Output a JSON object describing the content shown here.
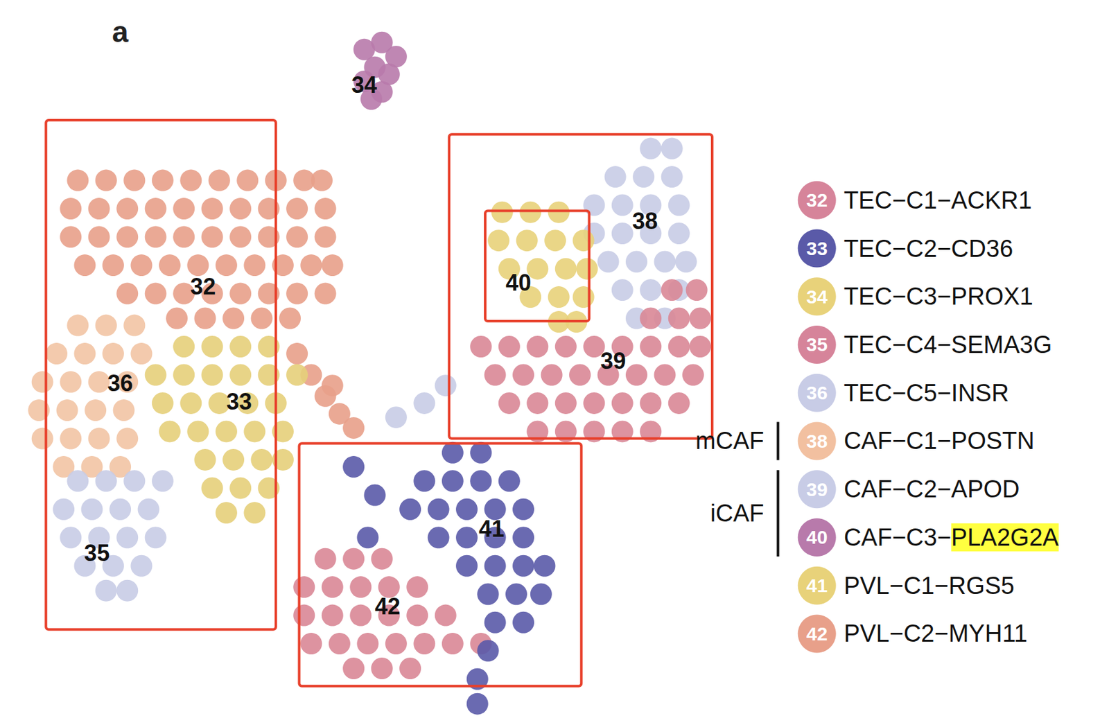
{
  "chart_data": {
    "type": "scatter",
    "panel_label": "a",
    "xlim": [
      0,
      1568
    ],
    "ylim": [
      1025,
      0
    ],
    "tick_labels": false,
    "grid": false,
    "series": [
      {
        "name": "34",
        "color": "#b87aab",
        "label_pos": [
          515,
          120
        ],
        "points": [
          [
            515,
            70
          ],
          [
            540,
            60
          ],
          [
            560,
            80
          ],
          [
            530,
            95
          ],
          [
            550,
            105
          ],
          [
            515,
            115
          ],
          [
            540,
            130
          ],
          [
            525,
            140
          ]
        ]
      },
      {
        "name": "32",
        "color": "#e8a08a",
        "label_pos": [
          287,
          405
        ],
        "points": [
          [
            110,
            255
          ],
          [
            150,
            255
          ],
          [
            190,
            255
          ],
          [
            230,
            255
          ],
          [
            270,
            255
          ],
          [
            310,
            255
          ],
          [
            350,
            255
          ],
          [
            390,
            255
          ],
          [
            430,
            255
          ],
          [
            455,
            255
          ],
          [
            100,
            295
          ],
          [
            140,
            295
          ],
          [
            180,
            295
          ],
          [
            220,
            295
          ],
          [
            260,
            295
          ],
          [
            300,
            295
          ],
          [
            340,
            295
          ],
          [
            380,
            295
          ],
          [
            420,
            295
          ],
          [
            460,
            295
          ],
          [
            100,
            335
          ],
          [
            140,
            335
          ],
          [
            180,
            335
          ],
          [
            220,
            335
          ],
          [
            260,
            335
          ],
          [
            300,
            335
          ],
          [
            340,
            335
          ],
          [
            380,
            335
          ],
          [
            420,
            335
          ],
          [
            460,
            335
          ],
          [
            120,
            375
          ],
          [
            160,
            375
          ],
          [
            200,
            375
          ],
          [
            240,
            375
          ],
          [
            280,
            375
          ],
          [
            320,
            375
          ],
          [
            360,
            375
          ],
          [
            400,
            375
          ],
          [
            440,
            375
          ],
          [
            470,
            375
          ],
          [
            180,
            415
          ],
          [
            220,
            415
          ],
          [
            260,
            415
          ],
          [
            300,
            415
          ],
          [
            340,
            415
          ],
          [
            380,
            415
          ],
          [
            420,
            415
          ],
          [
            460,
            415
          ],
          [
            250,
            450
          ],
          [
            290,
            450
          ],
          [
            330,
            450
          ],
          [
            370,
            450
          ],
          [
            410,
            450
          ],
          [
            420,
            500
          ],
          [
            440,
            530
          ],
          [
            470,
            545
          ],
          [
            460,
            560
          ],
          [
            480,
            585
          ],
          [
            500,
            605
          ]
        ]
      },
      {
        "name": "36",
        "color": "#f2c4a4",
        "label_pos": [
          170,
          542
        ],
        "points": [
          [
            110,
            460
          ],
          [
            150,
            460
          ],
          [
            190,
            460
          ],
          [
            80,
            500
          ],
          [
            120,
            500
          ],
          [
            160,
            500
          ],
          [
            200,
            500
          ],
          [
            60,
            540
          ],
          [
            100,
            540
          ],
          [
            140,
            540
          ],
          [
            180,
            540
          ],
          [
            55,
            580
          ],
          [
            95,
            580
          ],
          [
            135,
            580
          ],
          [
            175,
            580
          ],
          [
            60,
            620
          ],
          [
            100,
            620
          ],
          [
            140,
            620
          ],
          [
            180,
            620
          ],
          [
            90,
            660
          ],
          [
            130,
            660
          ],
          [
            170,
            660
          ]
        ]
      },
      {
        "name": "33",
        "color": "#e5cf7a",
        "label_pos": [
          338,
          568
        ],
        "points": [
          [
            260,
            490
          ],
          [
            300,
            490
          ],
          [
            340,
            490
          ],
          [
            380,
            490
          ],
          [
            220,
            530
          ],
          [
            260,
            530
          ],
          [
            300,
            530
          ],
          [
            340,
            530
          ],
          [
            380,
            530
          ],
          [
            420,
            530
          ],
          [
            230,
            570
          ],
          [
            270,
            570
          ],
          [
            310,
            570
          ],
          [
            350,
            570
          ],
          [
            390,
            570
          ],
          [
            240,
            610
          ],
          [
            280,
            610
          ],
          [
            320,
            610
          ],
          [
            360,
            610
          ],
          [
            400,
            610
          ],
          [
            290,
            650
          ],
          [
            330,
            650
          ],
          [
            370,
            650
          ],
          [
            400,
            650
          ],
          [
            300,
            690
          ],
          [
            340,
            690
          ],
          [
            380,
            690
          ],
          [
            320,
            725
          ],
          [
            360,
            725
          ]
        ]
      },
      {
        "name": "35",
        "color": "#c8cce6",
        "label_pos": [
          137,
          782
        ],
        "points": [
          [
            110,
            680
          ],
          [
            150,
            680
          ],
          [
            190,
            680
          ],
          [
            230,
            680
          ],
          [
            90,
            720
          ],
          [
            130,
            720
          ],
          [
            170,
            720
          ],
          [
            210,
            720
          ],
          [
            100,
            760
          ],
          [
            140,
            760
          ],
          [
            180,
            760
          ],
          [
            220,
            760
          ],
          [
            120,
            800
          ],
          [
            160,
            800
          ],
          [
            200,
            800
          ],
          [
            150,
            835
          ],
          [
            180,
            835
          ]
        ]
      },
      {
        "name": "38",
        "color": "#c8cce6",
        "label_pos": [
          912,
          312
        ],
        "points": [
          [
            920,
            210
          ],
          [
            950,
            210
          ],
          [
            870,
            250
          ],
          [
            910,
            250
          ],
          [
            950,
            250
          ],
          [
            840,
            290
          ],
          [
            880,
            290
          ],
          [
            920,
            290
          ],
          [
            960,
            290
          ],
          [
            840,
            330
          ],
          [
            880,
            330
          ],
          [
            920,
            330
          ],
          [
            960,
            330
          ],
          [
            860,
            370
          ],
          [
            900,
            370
          ],
          [
            940,
            370
          ],
          [
            970,
            370
          ],
          [
            880,
            410
          ],
          [
            920,
            410
          ],
          [
            960,
            410
          ],
          [
            900,
            450
          ],
          [
            940,
            450
          ],
          [
            560,
            590
          ],
          [
            600,
            570
          ],
          [
            630,
            545
          ]
        ]
      },
      {
        "name": "39",
        "color": "#d98796",
        "label_pos": [
          867,
          510
        ],
        "points": [
          [
            950,
            410
          ],
          [
            985,
            410
          ],
          [
            920,
            450
          ],
          [
            960,
            450
          ],
          [
            990,
            450
          ],
          [
            680,
            490
          ],
          [
            720,
            490
          ],
          [
            760,
            490
          ],
          [
            800,
            490
          ],
          [
            840,
            490
          ],
          [
            880,
            490
          ],
          [
            920,
            490
          ],
          [
            960,
            490
          ],
          [
            990,
            490
          ],
          [
            700,
            530
          ],
          [
            740,
            530
          ],
          [
            780,
            530
          ],
          [
            820,
            530
          ],
          [
            860,
            530
          ],
          [
            900,
            530
          ],
          [
            940,
            530
          ],
          [
            980,
            530
          ],
          [
            720,
            570
          ],
          [
            760,
            570
          ],
          [
            800,
            570
          ],
          [
            840,
            570
          ],
          [
            880,
            570
          ],
          [
            920,
            570
          ],
          [
            960,
            570
          ],
          [
            760,
            610
          ],
          [
            800,
            610
          ],
          [
            840,
            610
          ],
          [
            880,
            610
          ],
          [
            920,
            610
          ]
        ]
      },
      {
        "name": "40",
        "color": "#e8d27a",
        "label_pos": [
          733,
          400
        ],
        "points": [
          [
            710,
            300
          ],
          [
            750,
            300
          ],
          [
            790,
            300
          ],
          [
            705,
            340
          ],
          [
            745,
            340
          ],
          [
            785,
            340
          ],
          [
            825,
            340
          ],
          [
            720,
            380
          ],
          [
            760,
            380
          ],
          [
            800,
            380
          ],
          [
            830,
            380
          ],
          [
            750,
            420
          ],
          [
            790,
            420
          ],
          [
            825,
            420
          ],
          [
            790,
            455
          ],
          [
            815,
            455
          ]
        ]
      },
      {
        "name": "42",
        "color": "#d98796",
        "label_pos": [
          548,
          857
        ],
        "points": [
          [
            460,
            790
          ],
          [
            500,
            790
          ],
          [
            540,
            790
          ],
          [
            430,
            830
          ],
          [
            470,
            830
          ],
          [
            510,
            830
          ],
          [
            550,
            830
          ],
          [
            590,
            830
          ],
          [
            430,
            870
          ],
          [
            470,
            870
          ],
          [
            510,
            870
          ],
          [
            550,
            870
          ],
          [
            590,
            870
          ],
          [
            630,
            870
          ],
          [
            440,
            910
          ],
          [
            480,
            910
          ],
          [
            520,
            910
          ],
          [
            560,
            910
          ],
          [
            600,
            910
          ],
          [
            640,
            910
          ],
          [
            680,
            910
          ],
          [
            500,
            945
          ],
          [
            540,
            945
          ],
          [
            580,
            945
          ]
        ]
      },
      {
        "name": "41",
        "color": "#5a5aa8",
        "label_pos": [
          695,
          748
        ],
        "points": [
          [
            640,
            640
          ],
          [
            680,
            640
          ],
          [
            600,
            680
          ],
          [
            640,
            680
          ],
          [
            680,
            680
          ],
          [
            720,
            680
          ],
          [
            580,
            720
          ],
          [
            620,
            720
          ],
          [
            660,
            720
          ],
          [
            700,
            720
          ],
          [
            740,
            720
          ],
          [
            620,
            760
          ],
          [
            660,
            760
          ],
          [
            700,
            760
          ],
          [
            740,
            760
          ],
          [
            660,
            800
          ],
          [
            700,
            800
          ],
          [
            740,
            800
          ],
          [
            770,
            800
          ],
          [
            690,
            840
          ],
          [
            730,
            840
          ],
          [
            765,
            840
          ],
          [
            700,
            880
          ],
          [
            740,
            880
          ],
          [
            690,
            920
          ],
          [
            675,
            960
          ],
          [
            675,
            995
          ],
          [
            500,
            660
          ],
          [
            530,
            700
          ],
          [
            520,
            760
          ]
        ]
      }
    ],
    "boxes": [
      [
        65,
        170,
        390,
        890
      ],
      [
        635,
        190,
        1007,
        620
      ],
      [
        686,
        298,
        833,
        454
      ],
      [
        423,
        627,
        822,
        970
      ]
    ],
    "legend_items": [
      {
        "number": "32",
        "label": "TEC−C1−ACKR1",
        "color": "#d6849a"
      },
      {
        "number": "33",
        "label": "TEC−C2−CD36",
        "color": "#5a5aa8"
      },
      {
        "number": "34",
        "label": "TEC−C3−PROX1",
        "color": "#e8d27a"
      },
      {
        "number": "35",
        "label": "TEC−C4−SEMA3G",
        "color": "#d6849a"
      },
      {
        "number": "36",
        "label": "TEC−C5−INSR",
        "color": "#c8cce6"
      },
      {
        "number": "38",
        "label": "CAF−C1−POSTN",
        "color": "#f2c0a0"
      },
      {
        "number": "39",
        "label": "CAF−C2−APOD",
        "color": "#c8cce6"
      },
      {
        "number": "40",
        "label": "CAF−C3−PLA2G2A",
        "color": "#b87aab",
        "highlight": "PLA2G2A"
      },
      {
        "number": "41",
        "label": "PVL−C1−RGS5",
        "color": "#e8d27a"
      },
      {
        "number": "42",
        "label": "PVL−C2−MYH11",
        "color": "#e8a08a"
      }
    ],
    "groups": [
      {
        "label": "mCAF",
        "items": [
          "38"
        ]
      },
      {
        "label": "iCAF",
        "items": [
          "39",
          "40"
        ]
      }
    ]
  }
}
